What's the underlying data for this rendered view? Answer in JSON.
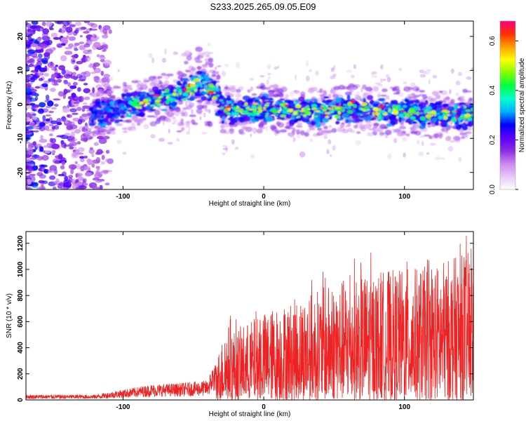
{
  "title": "S233.2025.265.09.05.E09",
  "chart_data": [
    {
      "type": "heatmap",
      "xlabel": "Height of straight line (km)",
      "ylabel": "Frequency (Hz)",
      "xlim": [
        -169,
        149
      ],
      "ylim": [
        -25,
        24.5
      ],
      "xticks": [
        -100,
        0,
        100
      ],
      "yticks": [
        -20,
        -10,
        0,
        10,
        20
      ],
      "band_center": {
        "x": [
          -120,
          -100,
          -80,
          -60,
          -45,
          -35,
          -30,
          -20,
          0,
          20,
          40,
          60,
          80,
          100,
          120,
          149
        ],
        "y": [
          -3,
          -1,
          1,
          3,
          6,
          4,
          -1,
          -2,
          -1,
          -2,
          -2,
          -1,
          -2,
          -2,
          -3,
          -3
        ]
      },
      "colorbar": {
        "label": "Normalized spectral amplitude",
        "range": [
          0.0,
          0.68
        ],
        "ticks": [
          "0.0",
          "0.2",
          "0.4",
          "0.6"
        ],
        "colormap": [
          "#ffffff",
          "#e6c8f5",
          "#cc88ee",
          "#8a2be2",
          "#5a00ff",
          "#0000ff",
          "#00b0ff",
          "#00ffd0",
          "#00ff40",
          "#80ff00",
          "#ffff00",
          "#ffa000",
          "#ff3000",
          "#ff0080"
        ]
      }
    },
    {
      "type": "line",
      "xlabel": "Height of straight line (km)",
      "ylabel": "SNR (10 * v/v)",
      "xlim": [
        -169,
        149
      ],
      "ylim": [
        0,
        1290
      ],
      "xticks": [
        -100,
        0,
        100
      ],
      "yticks": [
        0,
        200,
        400,
        600,
        800,
        1000,
        1200
      ],
      "color": "#ee2222",
      "envelope": {
        "x": [
          -169,
          -120,
          -100,
          -80,
          -60,
          -40,
          -35,
          -30,
          -25,
          -20,
          0,
          20,
          40,
          60,
          80,
          100,
          120,
          149
        ],
        "y": [
          40,
          40,
          80,
          120,
          130,
          150,
          300,
          500,
          650,
          600,
          750,
          850,
          950,
          1050,
          1100,
          1120,
          1150,
          1280
        ]
      }
    }
  ]
}
